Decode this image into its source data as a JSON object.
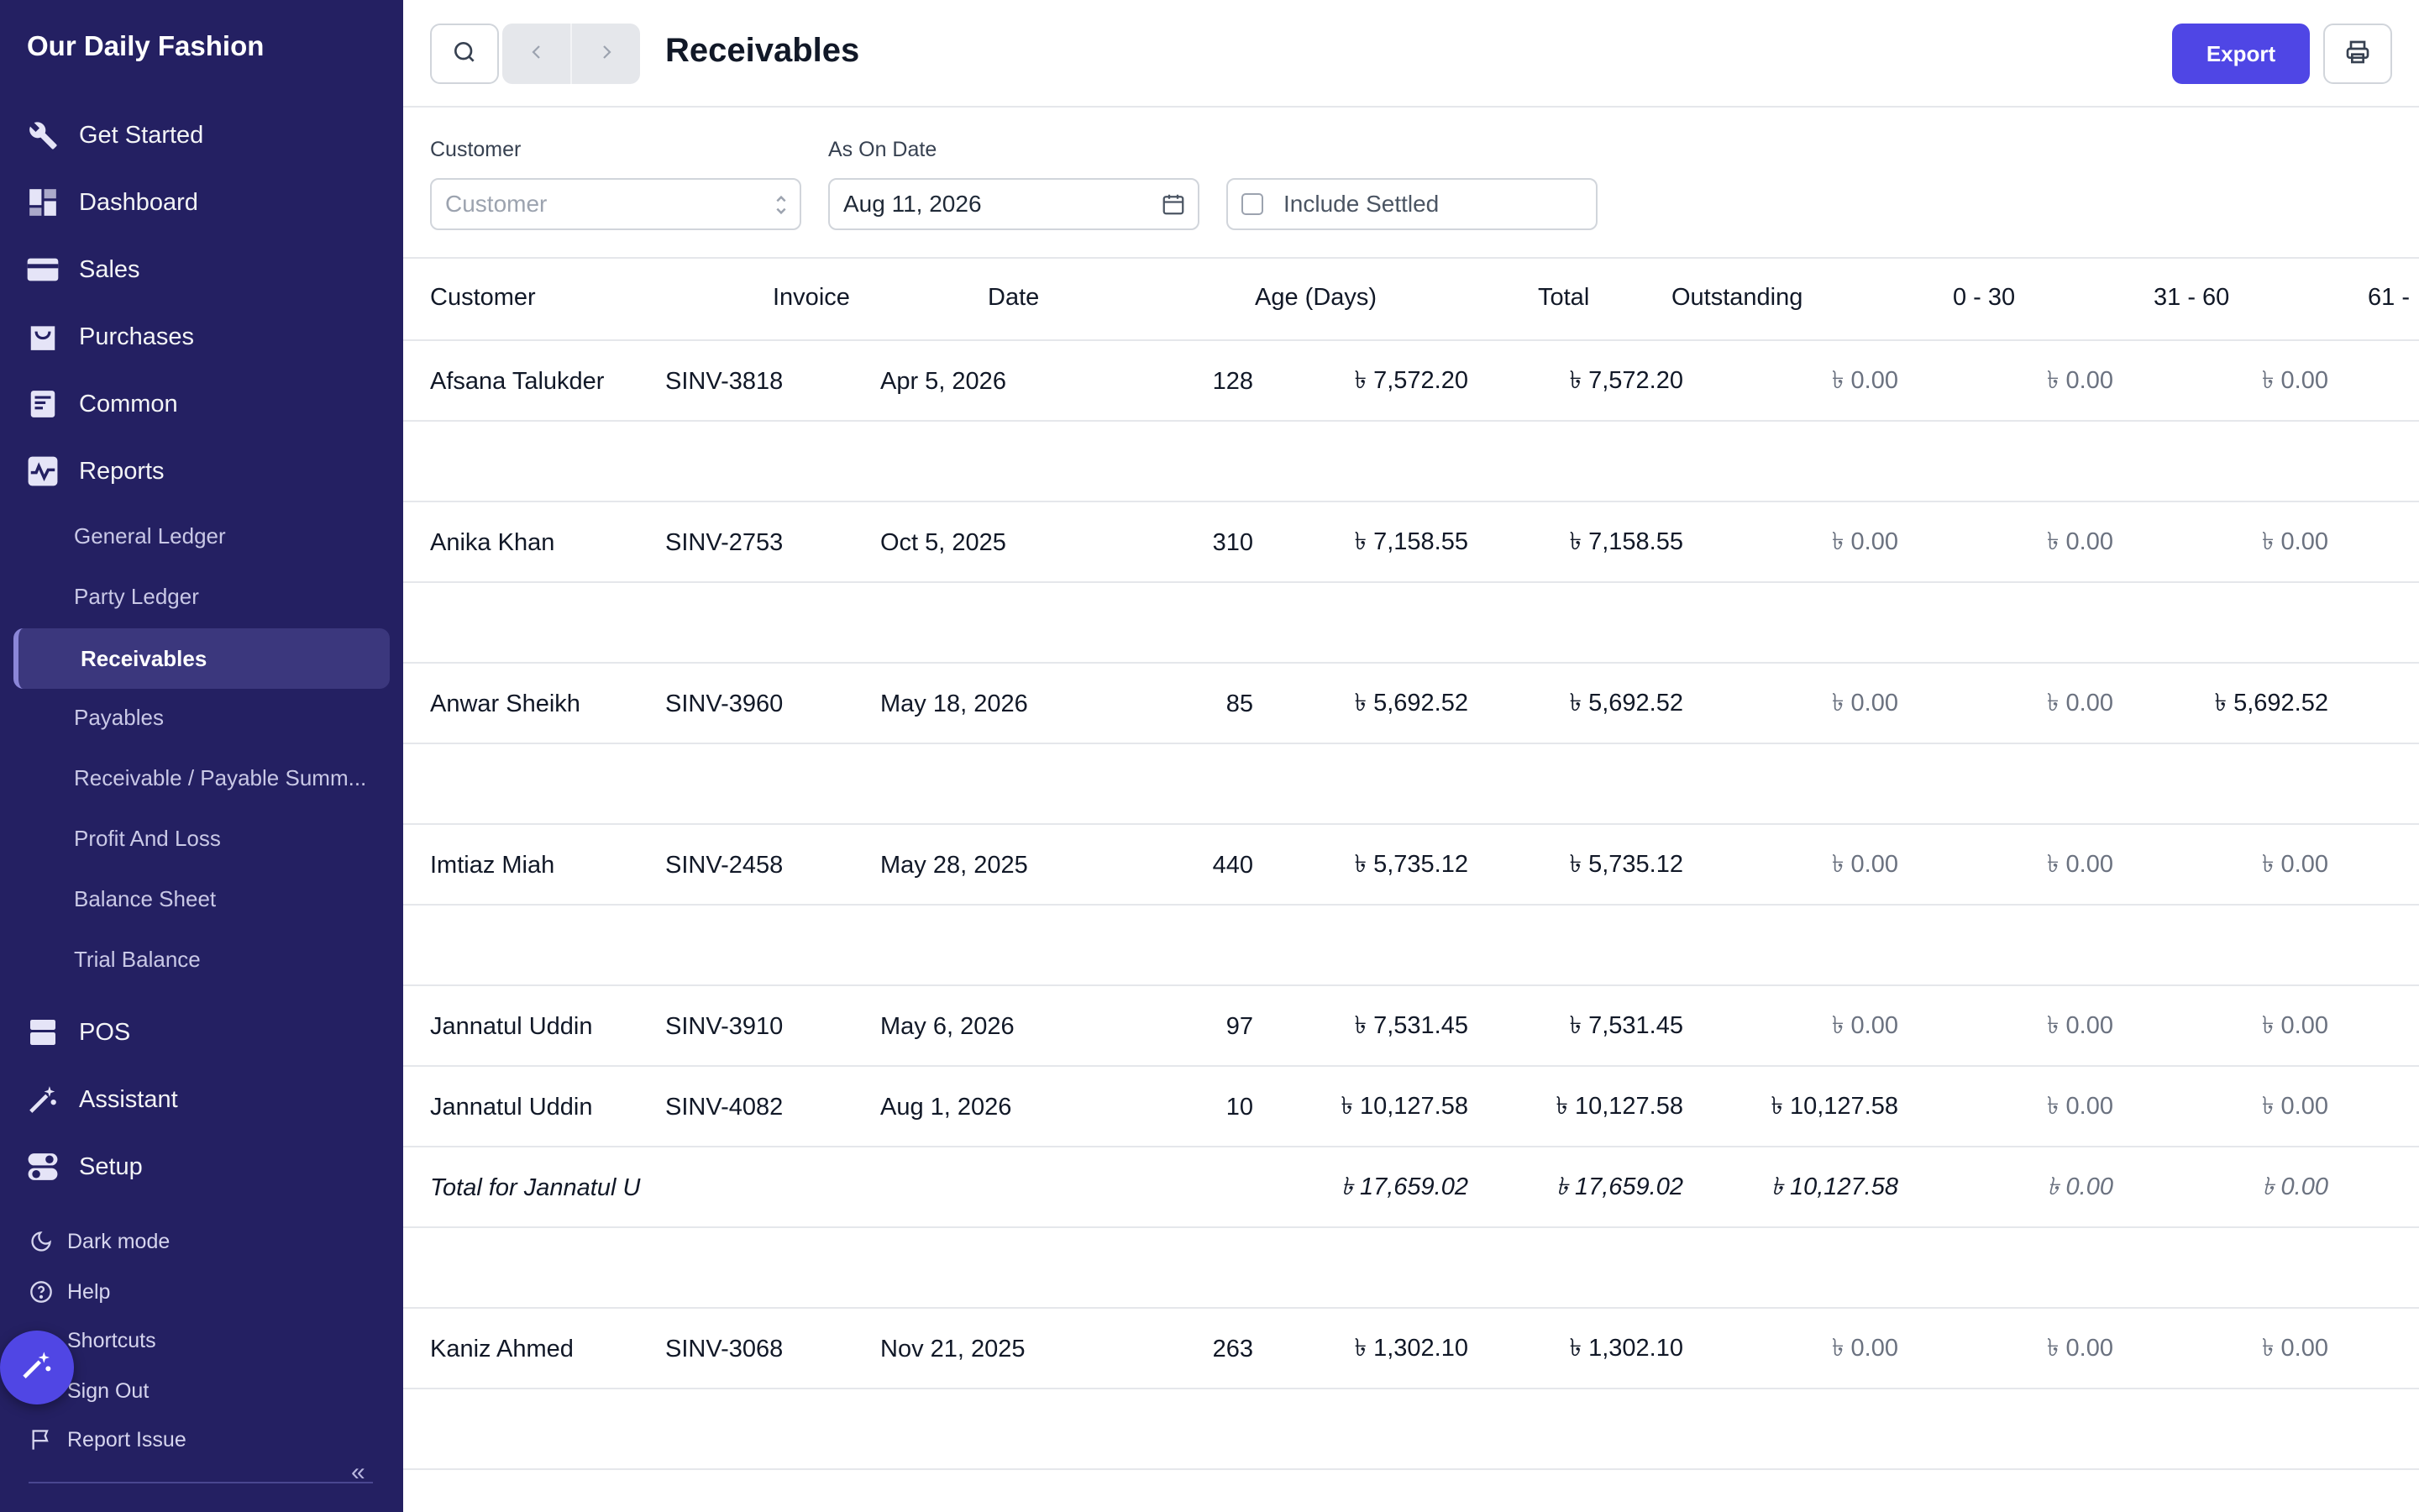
{
  "app": {
    "name": "Our Daily Fashion"
  },
  "sidebar": {
    "nav": [
      {
        "label": "Get Started",
        "icon": "tools-icon"
      },
      {
        "label": "Dashboard",
        "icon": "dashboard-icon"
      },
      {
        "label": "Sales",
        "icon": "sales-icon"
      },
      {
        "label": "Purchases",
        "icon": "purchases-icon"
      },
      {
        "label": "Common",
        "icon": "common-icon"
      },
      {
        "label": "Reports",
        "icon": "reports-icon"
      }
    ],
    "reports": [
      "General Ledger",
      "Party Ledger",
      "Receivables",
      "Payables",
      "Receivable / Payable Summ...",
      "Profit And Loss",
      "Balance Sheet",
      "Trial Balance"
    ],
    "nav2": [
      {
        "label": "POS",
        "icon": "pos-icon"
      },
      {
        "label": "Assistant",
        "icon": "assistant-icon"
      },
      {
        "label": "Setup",
        "icon": "setup-icon"
      }
    ],
    "footer": [
      "Dark mode",
      "Help",
      "Shortcuts",
      "Sign Out",
      "Report Issue"
    ],
    "collapse": "«"
  },
  "header": {
    "title": "Receivables",
    "export_label": "Export"
  },
  "filters": {
    "customer_label": "Customer",
    "customer_placeholder": "Customer",
    "date_label": "As On Date",
    "date_value": "Aug 11, 2026",
    "include_settled": "Include Settled"
  },
  "table": {
    "columns": [
      "Customer",
      "Invoice",
      "Date",
      "Age (Days)",
      "Total",
      "Outstanding",
      "0 - 30",
      "31 - 60",
      "61 -"
    ],
    "rows": [
      {
        "customer": "Afsana Talukder",
        "invoice": "SINV-3818",
        "date": "Apr 5, 2026",
        "age": "128",
        "total": "৳ 7,572.20",
        "outstanding": "৳ 7,572.20",
        "b0": "৳ 0.00",
        "b1": "৳ 0.00",
        "b2": "৳ 0.00"
      },
      {
        "customer": "Anika Khan",
        "invoice": "SINV-2753",
        "date": "Oct 5, 2025",
        "age": "310",
        "total": "৳ 7,158.55",
        "outstanding": "৳ 7,158.55",
        "b0": "৳ 0.00",
        "b1": "৳ 0.00",
        "b2": "৳ 0.00"
      },
      {
        "customer": "Anwar Sheikh",
        "invoice": "SINV-3960",
        "date": "May 18, 2026",
        "age": "85",
        "total": "৳ 5,692.52",
        "outstanding": "৳ 5,692.52",
        "b0": "৳ 0.00",
        "b1": "৳ 0.00",
        "b2": "৳ 5,692.52"
      },
      {
        "customer": "Imtiaz Miah",
        "invoice": "SINV-2458",
        "date": "May 28, 2025",
        "age": "440",
        "total": "৳ 5,735.12",
        "outstanding": "৳ 5,735.12",
        "b0": "৳ 0.00",
        "b1": "৳ 0.00",
        "b2": "৳ 0.00"
      },
      {
        "customer": "Jannatul Uddin",
        "invoice": "SINV-3910",
        "date": "May 6, 2026",
        "age": "97",
        "total": "৳ 7,531.45",
        "outstanding": "৳ 7,531.45",
        "b0": "৳ 0.00",
        "b1": "৳ 0.00",
        "b2": "৳ 0.00"
      },
      {
        "customer": "Jannatul Uddin",
        "invoice": "SINV-4082",
        "date": "Aug 1, 2026",
        "age": "10",
        "total": "৳ 10,127.58",
        "outstanding": "৳ 10,127.58",
        "b0": "৳ 10,127.58",
        "b1": "৳ 0.00",
        "b2": "৳ 0.00"
      },
      {
        "customer": "Kaniz Ahmed",
        "invoice": "SINV-3068",
        "date": "Nov 21, 2025",
        "age": "263",
        "total": "৳ 1,302.10",
        "outstanding": "৳ 1,302.10",
        "b0": "৳ 0.00",
        "b1": "৳ 0.00",
        "b2": "৳ 0.00"
      }
    ],
    "total_jannatul": {
      "label": "Total for Jannatul U",
      "total": "৳ 17,659.02",
      "outstanding": "৳ 17,659.02",
      "b0": "৳ 10,127.58",
      "b1": "৳ 0.00",
      "b2": "৳ 0.00"
    }
  }
}
